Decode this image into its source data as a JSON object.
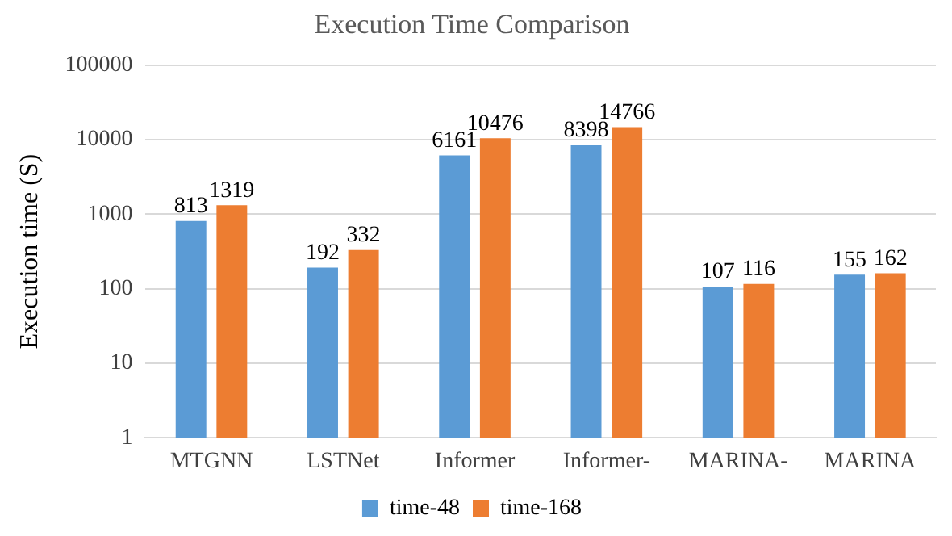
{
  "chart_data": {
    "type": "bar",
    "title": "Execution Time Comparison",
    "ylabel": "Execution time (S)",
    "categories": [
      "MTGNN",
      "LSTNet",
      "Informer",
      "Informer-",
      "MARINA-",
      "MARINA"
    ],
    "series": [
      {
        "name": "time-48",
        "color": "#5b9bd5",
        "values": [
          813,
          192,
          6161,
          8398,
          107,
          155
        ]
      },
      {
        "name": "time-168",
        "color": "#ed7d31",
        "values": [
          1319,
          332,
          10476,
          14766,
          116,
          162
        ]
      }
    ],
    "log": true,
    "ylim": [
      1,
      100000
    ],
    "yticks": [
      1,
      10,
      100,
      1000,
      10000,
      100000
    ],
    "grid": "y",
    "legend": "bottom",
    "data_labels": true
  }
}
